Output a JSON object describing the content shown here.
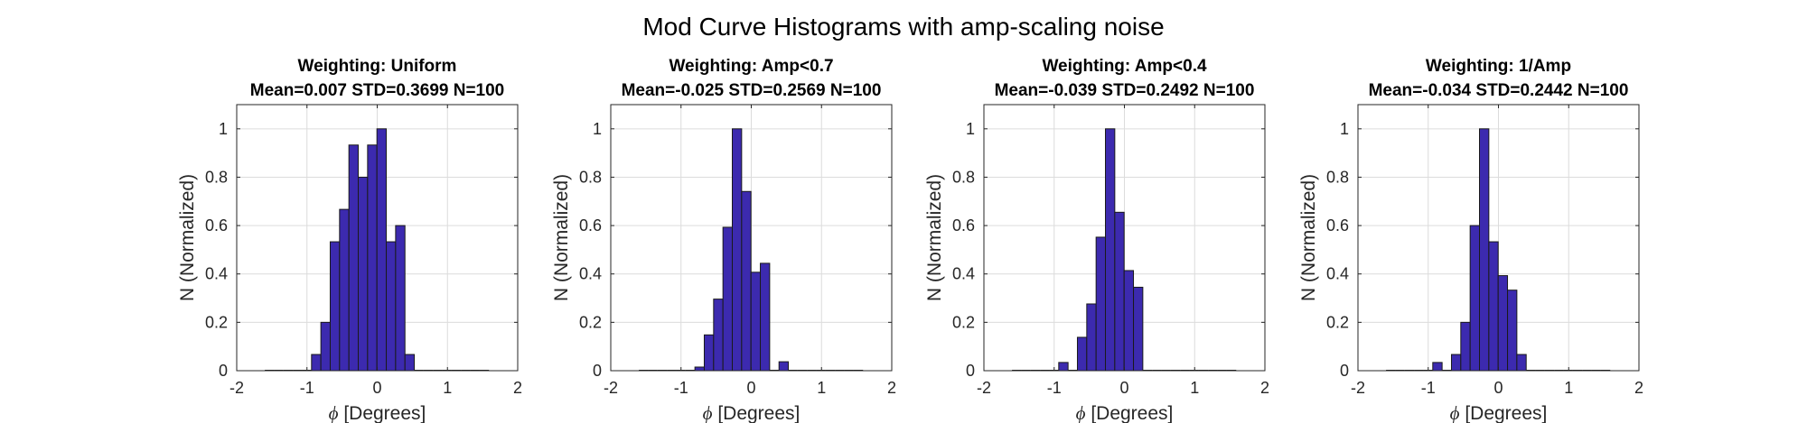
{
  "figure_title": "Mod Curve Histograms with amp-scaling noise",
  "bar_color": "#3c2aaf",
  "chart_data": [
    {
      "type": "bar",
      "title": "Weighting: Uniform",
      "subtitle": "Mean=0.007 STD=0.3699 N=100",
      "xlabel_symbol": "ϕ",
      "xlabel": " [Degrees]",
      "ylabel": "N (Normalized)",
      "xlim": [
        -2,
        2
      ],
      "ylim": [
        0,
        1.1
      ],
      "xticks": [
        "-2",
        "-1",
        "0",
        "1",
        "2"
      ],
      "yticks": [
        "0",
        "0.2",
        "0.4",
        "0.6",
        "0.8",
        "1"
      ],
      "grid": true,
      "bin_start": -1.6,
      "bin_width": 0.133,
      "values": [
        0,
        0,
        0,
        0,
        0,
        0.067,
        0.2,
        0.533,
        0.667,
        0.933,
        0.8,
        0.933,
        1.0,
        0.533,
        0.6,
        0.067,
        0,
        0,
        0,
        0,
        0,
        0,
        0,
        0
      ]
    },
    {
      "type": "bar",
      "title": "Weighting: Amp<0.7",
      "subtitle": "Mean=-0.025 STD=0.2569 N=100",
      "xlabel_symbol": "ϕ",
      "xlabel": " [Degrees]",
      "ylabel": "N (Normalized)",
      "xlim": [
        -2,
        2
      ],
      "ylim": [
        0,
        1.1
      ],
      "xticks": [
        "-2",
        "-1",
        "0",
        "1",
        "2"
      ],
      "yticks": [
        "0",
        "0.2",
        "0.4",
        "0.6",
        "0.8",
        "1"
      ],
      "grid": true,
      "bin_start": -1.6,
      "bin_width": 0.133,
      "values": [
        0,
        0,
        0,
        0,
        0,
        0,
        0.015,
        0.148,
        0.296,
        0.593,
        1.0,
        0.741,
        0.407,
        0.444,
        0,
        0.037,
        0,
        0,
        0,
        0,
        0,
        0,
        0,
        0
      ]
    },
    {
      "type": "bar",
      "title": "Weighting: Amp<0.4",
      "subtitle": "Mean=-0.039 STD=0.2492 N=100",
      "xlabel_symbol": "ϕ",
      "xlabel": " [Degrees]",
      "ylabel": "N (Normalized)",
      "xlim": [
        -2,
        2
      ],
      "ylim": [
        0,
        1.1
      ],
      "xticks": [
        "-2",
        "-1",
        "0",
        "1",
        "2"
      ],
      "yticks": [
        "0",
        "0.2",
        "0.4",
        "0.6",
        "0.8",
        "1"
      ],
      "grid": true,
      "bin_start": -1.6,
      "bin_width": 0.133,
      "values": [
        0,
        0,
        0,
        0,
        0,
        0.034,
        0,
        0.138,
        0.276,
        0.552,
        1.0,
        0.655,
        0.414,
        0.345,
        0,
        0,
        0,
        0,
        0,
        0,
        0,
        0,
        0,
        0
      ]
    },
    {
      "type": "bar",
      "title": "Weighting: 1/Amp",
      "subtitle": "Mean=-0.034 STD=0.2442 N=100",
      "xlabel_symbol": "ϕ",
      "xlabel": " [Degrees]",
      "ylabel": "N (Normalized)",
      "xlim": [
        -2,
        2
      ],
      "ylim": [
        0,
        1.1
      ],
      "xticks": [
        "-2",
        "-1",
        "0",
        "1",
        "2"
      ],
      "yticks": [
        "0",
        "0.2",
        "0.4",
        "0.6",
        "0.8",
        "1"
      ],
      "grid": true,
      "bin_start": -1.6,
      "bin_width": 0.133,
      "values": [
        0,
        0,
        0,
        0,
        0,
        0.034,
        0,
        0.067,
        0.2,
        0.6,
        1.0,
        0.533,
        0.393,
        0.333,
        0.067,
        0,
        0,
        0,
        0,
        0,
        0,
        0,
        0,
        0
      ]
    }
  ]
}
